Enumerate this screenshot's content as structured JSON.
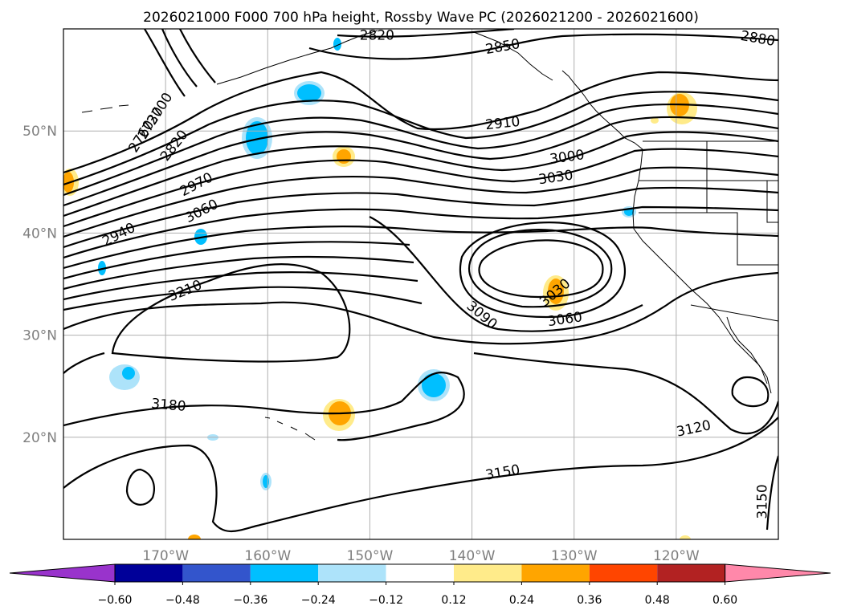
{
  "chart_data": {
    "type": "contour map",
    "title": "2026021000 F000 700 hPa height, Rossby Wave PC (2026021200 - 2026021600)",
    "x_ticks": [
      {
        "lon": -170,
        "label": "170°W"
      },
      {
        "lon": -160,
        "label": "160°W"
      },
      {
        "lon": -150,
        "label": "150°W"
      },
      {
        "lon": -140,
        "label": "140°W"
      },
      {
        "lon": -130,
        "label": "130°W"
      },
      {
        "lon": -120,
        "label": "120°W"
      }
    ],
    "y_ticks": [
      {
        "lat": 20,
        "label": "20°N"
      },
      {
        "lat": 30,
        "label": "30°N"
      },
      {
        "lat": 40,
        "label": "40°N"
      },
      {
        "lat": 50,
        "label": "50°N"
      }
    ],
    "lon_range": [
      -180,
      -110
    ],
    "lat_range": [
      10,
      60
    ],
    "grid": true,
    "contour_labels": [
      {
        "text": "2820",
        "lon": -149.3,
        "lat": 59.4,
        "angle": 0
      },
      {
        "text": "2850",
        "lon": -137,
        "lat": 58.3,
        "angle": -10
      },
      {
        "text": "2880",
        "lon": -112,
        "lat": 59.1,
        "angle": 10
      },
      {
        "text": "2700",
        "lon": -170.6,
        "lat": 52.2,
        "angle": -58
      },
      {
        "text": "2730",
        "lon": -171.5,
        "lat": 50.8,
        "angle": -58
      },
      {
        "text": "2760",
        "lon": -172.4,
        "lat": 49.5,
        "angle": -58
      },
      {
        "text": "2820",
        "lon": -169.2,
        "lat": 48.6,
        "angle": -52
      },
      {
        "text": "2910",
        "lon": -137,
        "lat": 50.8,
        "angle": -6
      },
      {
        "text": "3000",
        "lon": -130.7,
        "lat": 47.5,
        "angle": -8
      },
      {
        "text": "3030",
        "lon": -131.8,
        "lat": 45.5,
        "angle": -8
      },
      {
        "text": "2970",
        "lon": -167,
        "lat": 44.8,
        "angle": -28
      },
      {
        "text": "3060",
        "lon": -166.5,
        "lat": 42.2,
        "angle": -27
      },
      {
        "text": "2940",
        "lon": -174.6,
        "lat": 39.9,
        "angle": -27
      },
      {
        "text": "3210",
        "lon": -168.1,
        "lat": 34.4,
        "angle": -22
      },
      {
        "text": "3090",
        "lon": -139,
        "lat": 32.0,
        "angle": 40
      },
      {
        "text": "3060",
        "lon": -130.9,
        "lat": 31.6,
        "angle": -8
      },
      {
        "text": "3030",
        "lon": -131.9,
        "lat": 34.2,
        "angle": -40
      },
      {
        "text": "3180",
        "lon": -169.7,
        "lat": 23.2,
        "angle": 5
      },
      {
        "text": "3120",
        "lon": -118.3,
        "lat": 20.9,
        "angle": -12
      },
      {
        "text": "3150",
        "lon": -137,
        "lat": 16.6,
        "angle": -10
      },
      {
        "text": "3150",
        "lon": -111.6,
        "lat": 13.7,
        "angle": -90
      }
    ],
    "colorbar": {
      "ticks": [
        "−0.60",
        "−0.48",
        "−0.36",
        "−0.24",
        "−0.12",
        "0.12",
        "0.24",
        "0.36",
        "0.48",
        "0.60"
      ],
      "colors": [
        "#9933cc",
        "#000099",
        "#3355cc",
        "#00bfff",
        "#ade3fa",
        "#ffffff",
        "#ffeb8a",
        "#ffa500",
        "#ff4500",
        "#b22222",
        "#ff88aa"
      ]
    }
  }
}
